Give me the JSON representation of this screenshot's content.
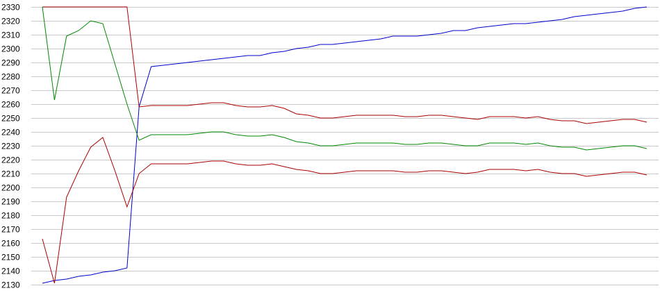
{
  "chart_data": {
    "type": "line",
    "title": "",
    "xlabel": "",
    "ylabel": "",
    "ylim": [
      2130,
      2330
    ],
    "yticks": [
      2130,
      2140,
      2150,
      2160,
      2170,
      2180,
      2190,
      2200,
      2210,
      2220,
      2230,
      2240,
      2250,
      2260,
      2270,
      2280,
      2290,
      2300,
      2310,
      2320,
      2330
    ],
    "grid": true,
    "legend": "none",
    "x": [
      1,
      2,
      3,
      4,
      5,
      6,
      7,
      8,
      9,
      10,
      11,
      12,
      13,
      14,
      15,
      16,
      17,
      18,
      19,
      20,
      21,
      22,
      23,
      24,
      25,
      26,
      27,
      28,
      29,
      30,
      31,
      32,
      33,
      34,
      35,
      36,
      37,
      38,
      39,
      40,
      41,
      42,
      43,
      44,
      45,
      46,
      47,
      48,
      49,
      50,
      51
    ],
    "series": [
      {
        "color": "#0000cc",
        "values": [
          2131,
          2133,
          2134,
          2136,
          2137,
          2139,
          2140,
          2142,
          2258,
          2287,
          2288,
          2289,
          2290,
          2291,
          2292,
          2293,
          2294,
          2295,
          2295,
          2297,
          2298,
          2300,
          2301,
          2303,
          2303,
          2304,
          2305,
          2306,
          2307,
          2309,
          2309,
          2309,
          2310,
          2311,
          2313,
          2313,
          2315,
          2316,
          2317,
          2318,
          2318,
          2319,
          2320,
          2321,
          2323,
          2324,
          2325,
          2326,
          2327,
          2329,
          2330
        ]
      },
      {
        "color": "#aa0000",
        "values": [
          2330,
          2330,
          2330,
          2330,
          2330,
          2330,
          2330,
          2330,
          2258,
          2259,
          2259,
          2259,
          2259,
          2260,
          2261,
          2261,
          2259,
          2258,
          2258,
          2259,
          2257,
          2253,
          2252,
          2250,
          2250,
          2251,
          2252,
          2252,
          2252,
          2252,
          2251,
          2251,
          2252,
          2252,
          2251,
          2250,
          2249,
          2251,
          2251,
          2251,
          2250,
          2251,
          2249,
          2248,
          2248,
          2246,
          2247,
          2248,
          2249,
          2249,
          2247
        ]
      },
      {
        "color": "#008800",
        "values": [
          2330,
          2263,
          2309,
          2313,
          2320,
          2318,
          2289,
          2260,
          2234,
          2238,
          2238,
          2238,
          2238,
          2239,
          2240,
          2240,
          2238,
          2237,
          2237,
          2238,
          2236,
          2233,
          2232,
          2230,
          2230,
          2231,
          2232,
          2232,
          2232,
          2232,
          2231,
          2231,
          2232,
          2232,
          2231,
          2230,
          2230,
          2232,
          2232,
          2232,
          2231,
          2232,
          2230,
          2229,
          2229,
          2227,
          2228,
          2229,
          2230,
          2230,
          2228
        ]
      },
      {
        "color": "#aa0000",
        "values": [
          2163,
          2131,
          2193,
          2212,
          2229,
          2236,
          2212,
          2186,
          2210,
          2217,
          2217,
          2217,
          2217,
          2218,
          2219,
          2219,
          2217,
          2216,
          2216,
          2217,
          2215,
          2213,
          2212,
          2210,
          2210,
          2211,
          2212,
          2212,
          2212,
          2212,
          2211,
          2211,
          2212,
          2212,
          2211,
          2210,
          2211,
          2213,
          2213,
          2213,
          2212,
          2213,
          2211,
          2210,
          2210,
          2208,
          2209,
          2210,
          2211,
          2211,
          2209
        ]
      }
    ]
  }
}
